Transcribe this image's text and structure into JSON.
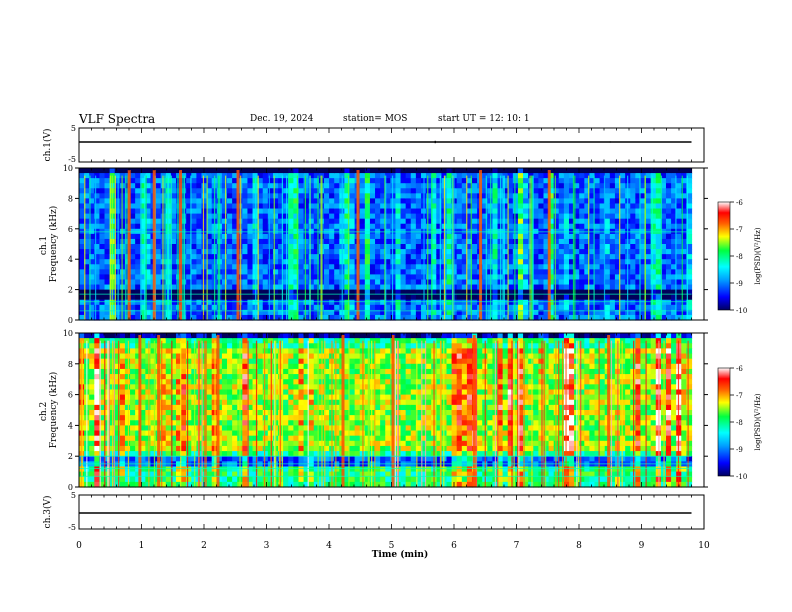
{
  "header": {
    "title": "VLF Spectra",
    "date": "Dec. 19, 2024",
    "station": "station= MOS",
    "start": "start  UT  =   12: 10: 1"
  },
  "panels": {
    "wave1_label": "ch.1(V)",
    "spec1_label": "ch.1\nFrequency (kHz)",
    "spec2_label": "ch.2\nFrequency (kHz)",
    "wave2_label": "ch.3(V)"
  },
  "colorbar": {
    "label": "log(PSD)(V²/Hz)",
    "ticks": [
      "-6",
      "-7",
      "-8",
      "-9",
      "-10"
    ]
  },
  "chart_data": [
    {
      "type": "line",
      "name": "waveform-ch1",
      "ylabel": "ch.1(V)",
      "ylim": [
        -5,
        5
      ],
      "yticks": [
        "5",
        "-5"
      ],
      "x": [
        0,
        5.7,
        8.5,
        9.8
      ],
      "y": [
        0,
        0.4,
        0.2,
        0
      ]
    },
    {
      "type": "heatmap",
      "name": "spectrogram-ch1",
      "ylabel": "Frequency (kHz)",
      "xlim": [
        0,
        10
      ],
      "ylim": [
        0,
        10
      ],
      "yticks": [
        "0",
        "2",
        "4",
        "6",
        "8",
        "10"
      ],
      "clim": [
        -10,
        -6
      ],
      "data_end_min": 9.8,
      "horizontal_lines_khz": [
        0.6,
        1.2,
        1.7,
        5.8
      ],
      "bright_bursts_min": [
        0.78,
        1.18,
        1.6,
        2.52,
        4.44,
        6.4,
        7.5
      ]
    },
    {
      "type": "heatmap",
      "name": "spectrogram-ch2",
      "ylabel": "Frequency (kHz)",
      "xlim": [
        0,
        10
      ],
      "ylim": [
        0,
        10
      ],
      "yticks": [
        "0",
        "2",
        "4",
        "6",
        "8",
        "10"
      ],
      "clim": [
        -10,
        -6
      ],
      "data_end_min": 9.8,
      "horizontal_lines_khz": [
        0.7,
        1.2,
        1.5,
        2.0
      ],
      "bright_bursts_min": [
        0.95,
        1.25,
        2.2,
        4.2,
        5.0,
        6.3,
        8.45
      ]
    },
    {
      "type": "line",
      "name": "waveform-ch3",
      "ylabel": "ch.3(V)",
      "ylim": [
        -5,
        5
      ],
      "yticks": [
        "5",
        "-5"
      ],
      "x": [
        0,
        4.9,
        9.8
      ],
      "y": [
        0,
        0.15,
        0
      ]
    }
  ],
  "x_axis": {
    "label": "Time (min)",
    "ticks": [
      "0",
      "1",
      "2",
      "3",
      "4",
      "5",
      "6",
      "7",
      "8",
      "9",
      "10"
    ]
  }
}
